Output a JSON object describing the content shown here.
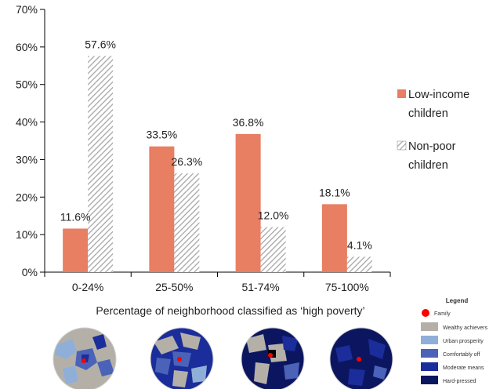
{
  "chart_data": {
    "type": "bar",
    "categories": [
      "0-24%",
      "25-50%",
      "51-74%",
      "75-100%"
    ],
    "series": [
      {
        "name": "Low-income children",
        "values": [
          11.6,
          33.5,
          36.8,
          18.1
        ],
        "labels": [
          "11.6%",
          "33.5%",
          "36.8%",
          "18.1%"
        ],
        "color": "#e87e62"
      },
      {
        "name": "Non-poor children",
        "values": [
          57.6,
          26.3,
          12.0,
          4.1
        ],
        "labels": [
          "57.6%",
          "26.3%",
          "12.0%",
          "4.1%"
        ],
        "color": "#b9b9b9",
        "pattern": "diagonal-hatch"
      }
    ],
    "legend_lines": [
      [
        "Low-income",
        "children"
      ],
      [
        "Non-poor",
        "children"
      ]
    ],
    "y_ticks": [
      "0%",
      "10%",
      "20%",
      "30%",
      "40%",
      "50%",
      "60%",
      "70%"
    ],
    "ylim": [
      0,
      70
    ],
    "xlabel": "Percentage of neighborhood classified as ‘high poverty’",
    "ylabel": "",
    "title": "",
    "legend_position": "right",
    "grid": false
  },
  "map_legend": {
    "title": "Legend",
    "items": [
      {
        "label": "Family",
        "color": "#ff0000",
        "shape": "dot"
      },
      {
        "label": "Wealthy achievers",
        "color": "#b4b0a8",
        "shape": "box"
      },
      {
        "label": "Urban prosperity",
        "color": "#8fafd8",
        "shape": "box"
      },
      {
        "label": "Comfortably off",
        "color": "#4a62b8",
        "shape": "box"
      },
      {
        "label": "Moderate means",
        "color": "#1b2d9a",
        "shape": "box"
      },
      {
        "label": "Hard-pressed",
        "color": "#0c1660",
        "shape": "box"
      }
    ]
  },
  "maps": [
    {
      "category": "0-24%",
      "base": "#b4b0a8"
    },
    {
      "category": "25-50%",
      "base": "#1b2d9a"
    },
    {
      "category": "51-74%",
      "base": "#0c1660"
    },
    {
      "category": "75-100%",
      "base": "#0c1660"
    }
  ]
}
